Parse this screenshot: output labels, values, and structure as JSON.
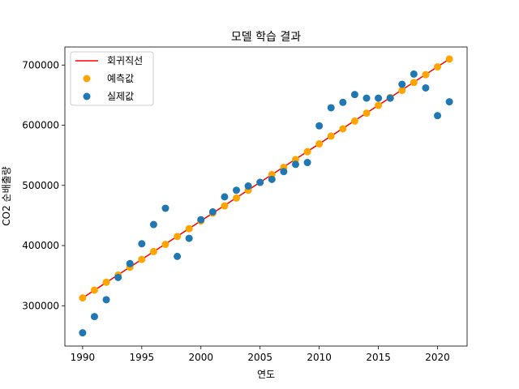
{
  "chart_data": {
    "type": "scatter",
    "title": "모델 학습 결과",
    "xlabel": "연도",
    "ylabel": "CO2 순배출량",
    "xlim": [
      1988.5,
      2022.5
    ],
    "ylim": [
      233000,
      730000
    ],
    "xticks": [
      1990,
      1995,
      2000,
      2005,
      2010,
      2015,
      2020
    ],
    "xtick_labels": [
      "1990",
      "1995",
      "2000",
      "2005",
      "2010",
      "2015",
      "2020"
    ],
    "yticks": [
      300000,
      400000,
      500000,
      600000,
      700000
    ],
    "ytick_labels": [
      "300000",
      "400000",
      "500000",
      "600000",
      "700000"
    ],
    "grid": false,
    "legend_position": "top-left",
    "x": [
      1990,
      1991,
      1992,
      1993,
      1994,
      1995,
      1996,
      1997,
      1998,
      1999,
      2000,
      2001,
      2002,
      2003,
      2004,
      2005,
      2006,
      2007,
      2008,
      2009,
      2010,
      2011,
      2012,
      2013,
      2014,
      2015,
      2016,
      2017,
      2018,
      2019,
      2020,
      2021
    ],
    "series": [
      {
        "name": "회귀직선",
        "kind": "line",
        "color": "#ff0000",
        "x": [
          1990,
          2021
        ],
        "values": [
          313000,
          710000
        ]
      },
      {
        "name": "예측값",
        "kind": "scatter",
        "color": "#ffa500",
        "values": [
          313000,
          326000,
          339000,
          351000,
          364000,
          377000,
          390000,
          402000,
          415000,
          428000,
          441000,
          454000,
          466000,
          479000,
          492000,
          505000,
          518000,
          530000,
          543000,
          556000,
          569000,
          582000,
          594000,
          607000,
          620000,
          633000,
          646000,
          658000,
          671000,
          684000,
          697000,
          710000
        ]
      },
      {
        "name": "실제값",
        "kind": "scatter",
        "color": "#1f77b4",
        "values": [
          255000,
          282000,
          310000,
          347000,
          370000,
          403000,
          435000,
          462000,
          382000,
          412000,
          443000,
          456000,
          481000,
          492000,
          499000,
          505000,
          510000,
          523000,
          535000,
          538000,
          599000,
          629000,
          638000,
          651000,
          645000,
          645000,
          645000,
          668000,
          685000,
          662000,
          616000,
          639000
        ]
      }
    ]
  }
}
